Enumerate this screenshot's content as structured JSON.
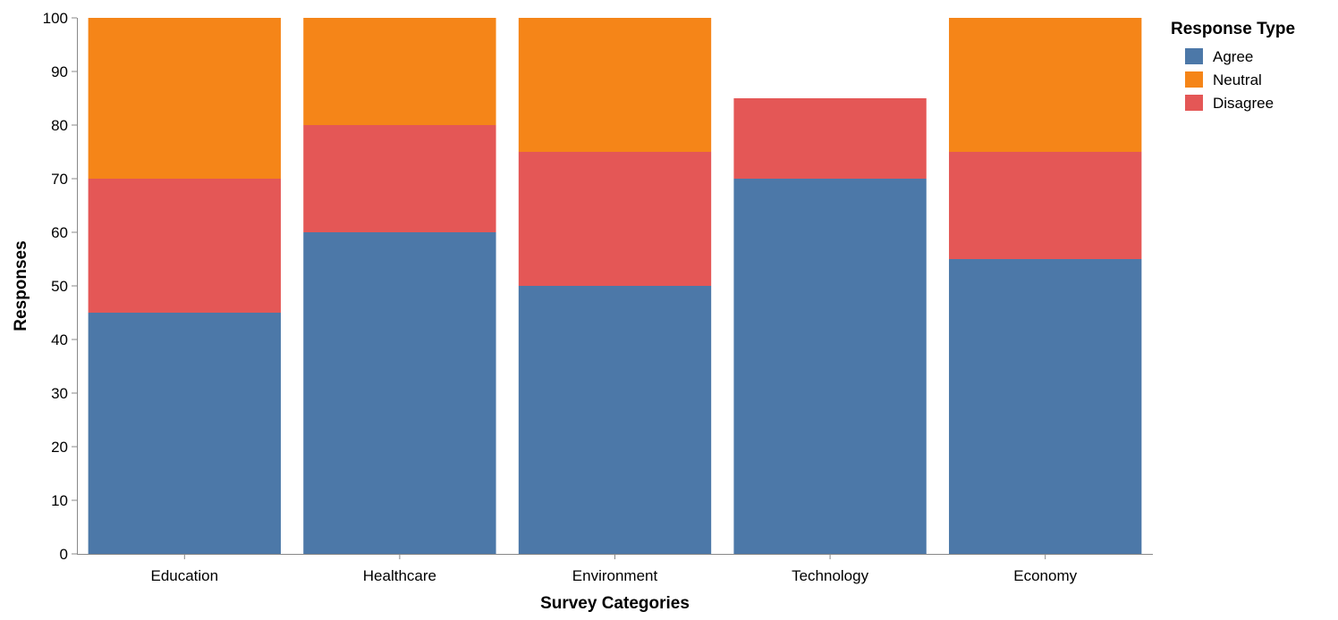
{
  "chart_data": {
    "type": "bar",
    "stacked": true,
    "categories": [
      "Education",
      "Healthcare",
      "Environment",
      "Technology",
      "Economy"
    ],
    "series": [
      {
        "name": "Agree",
        "values": [
          45,
          60,
          50,
          70,
          55
        ],
        "color": "#4c78a8"
      },
      {
        "name": "Disagree",
        "values": [
          25,
          20,
          25,
          15,
          20
        ],
        "color": "#e45756"
      },
      {
        "name": "Neutral",
        "values": [
          30,
          20,
          25,
          0,
          25
        ],
        "color": "#f58518"
      }
    ],
    "xlabel": "Survey Categories",
    "ylabel": "Responses",
    "ylim": [
      0,
      100
    ],
    "yticks": [
      0,
      10,
      20,
      30,
      40,
      50,
      60,
      70,
      80,
      90,
      100
    ],
    "grid": false,
    "legend": {
      "title": "Response Type",
      "placement": "top-right",
      "entries": [
        {
          "name": "Agree",
          "color": "#4c78a8"
        },
        {
          "name": "Neutral",
          "color": "#f58518"
        },
        {
          "name": "Disagree",
          "color": "#e45756"
        }
      ]
    }
  }
}
